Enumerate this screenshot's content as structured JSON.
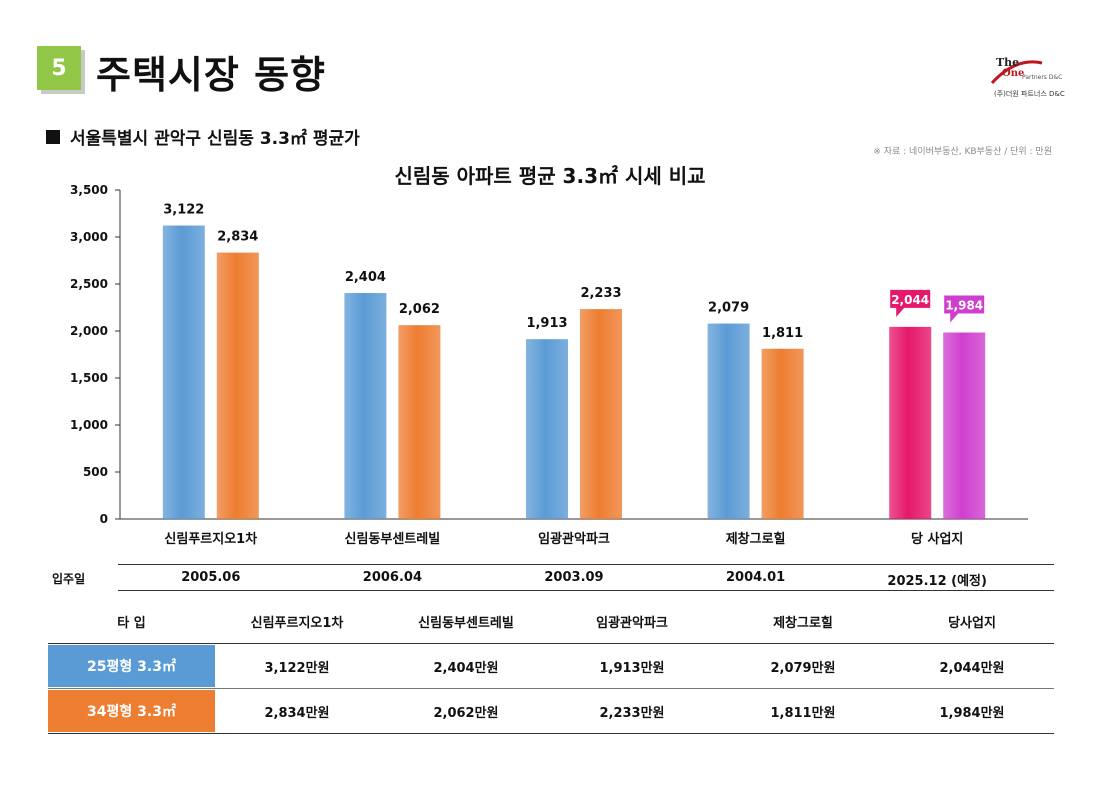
{
  "header": {
    "section_number": "5",
    "title": "주택시장 동향"
  },
  "logo": {
    "the": "The",
    "one": "One",
    "sub": "Partners D&C",
    "company": "(주)더원 파트너스 D&C"
  },
  "subheading": "서울특별시 관악구 신림동 3.3㎡  평균가",
  "source_note": "※ 자료 : 네이버부동산, KB부동산 / 단위 : 만원",
  "colors": {
    "series1": "#5b9bd5",
    "series2": "#ed7d31",
    "highlight1": "#e5186b",
    "highlight2": "#cf3fcf",
    "badge": "#92c646"
  },
  "chart_data": {
    "type": "bar",
    "title": "신림동 아파트 평균 3.3㎡ 시세 비교",
    "categories": [
      "신림푸르지오1차",
      "신림동부센트레빌",
      "임광관악파크",
      "제창그로힐",
      "당 사업지"
    ],
    "series": [
      {
        "values": [
          3122,
          2404,
          1913,
          2079,
          2044
        ]
      },
      {
        "values": [
          2834,
          2062,
          2233,
          1811,
          1984
        ]
      }
    ],
    "data_labels": [
      [
        "3,122",
        "2,404",
        "1,913",
        "2,079",
        "2,044"
      ],
      [
        "2,834",
        "2,062",
        "2,233",
        "1,811",
        "1,984"
      ]
    ],
    "highlight_category": "당 사업지",
    "ylim": [
      0,
      3500
    ],
    "yticks": [
      0,
      500,
      1000,
      1500,
      2000,
      2500,
      3000,
      3500
    ],
    "ytick_labels": [
      "0",
      "500",
      "1,000",
      "1,500",
      "2,000",
      "2,500",
      "3,000",
      "3,500"
    ],
    "grid": false,
    "legend": "none"
  },
  "move_in": {
    "label": "입주일",
    "dates": [
      "2005.06",
      "2006.04",
      "2003.09",
      "2004.01",
      "2025.12 (예정)"
    ]
  },
  "table": {
    "type_header": "타  입",
    "columns": [
      "신림푸르지오1차",
      "신림동부센트레빌",
      "임광관악파크",
      "제창그로힐",
      "당사업지"
    ],
    "rows": [
      {
        "label": "25평형 3.3㎡",
        "values": [
          "3,122만원",
          "2,404만원",
          "1,913만원",
          "2,079만원",
          "2,044만원"
        ]
      },
      {
        "label": "34평형 3.3㎡",
        "values": [
          "2,834만원",
          "2,062만원",
          "2,233만원",
          "1,811만원",
          "1,984만원"
        ]
      }
    ]
  }
}
